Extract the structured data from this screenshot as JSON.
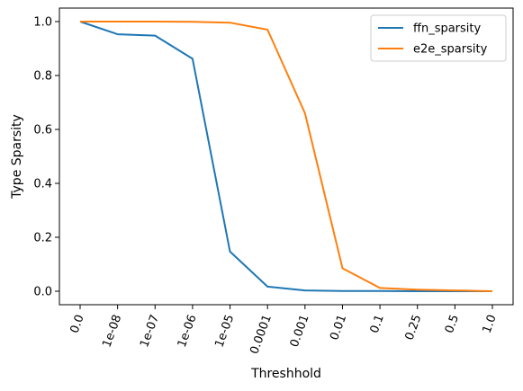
{
  "chart_data": {
    "type": "line",
    "xlabel": "Threshhold",
    "ylabel": "Type Sparsity",
    "categories": [
      "0.0",
      "1e-08",
      "1e-07",
      "1e-06",
      "1e-05",
      "0.0001",
      "0.001",
      "0.01",
      "0.1",
      "0.25",
      "0.5",
      "1.0"
    ],
    "yticks": [
      "0.0",
      "0.2",
      "0.4",
      "0.6",
      "0.8",
      "1.0"
    ],
    "ylim": [
      -0.05,
      1.05
    ],
    "legend_position": "top-right",
    "grid": false,
    "series": [
      {
        "name": "ffn_sparsity",
        "color": "#1f77b4",
        "values": [
          1.0,
          0.953,
          0.948,
          0.862,
          0.147,
          0.017,
          0.003,
          0.001,
          0.001,
          0.0,
          0.0,
          0.0
        ]
      },
      {
        "name": "e2e_sparsity",
        "color": "#ff7f0e",
        "values": [
          1.0,
          1.0,
          1.0,
          0.999,
          0.996,
          0.97,
          0.66,
          0.085,
          0.012,
          0.006,
          0.003,
          0.0
        ]
      }
    ]
  }
}
